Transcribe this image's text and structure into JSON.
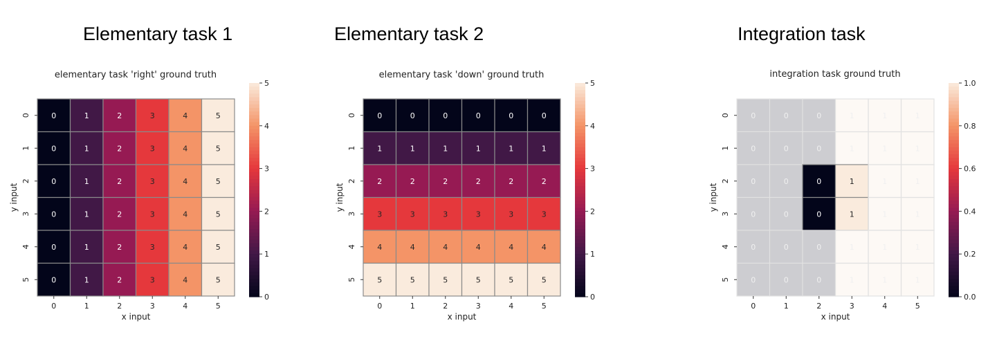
{
  "panel_titles": [
    "Elementary task 1",
    "Elementary task 2",
    "Integration task"
  ],
  "chart_data": [
    {
      "type": "heatmap",
      "title": "elementary task 'right' ground truth",
      "xlabel": "x input",
      "ylabel": "y input",
      "x_ticks": [
        "0",
        "1",
        "2",
        "3",
        "4",
        "5"
      ],
      "y_ticks": [
        "0",
        "1",
        "2",
        "3",
        "4",
        "5"
      ],
      "values": [
        [
          0,
          1,
          2,
          3,
          4,
          5
        ],
        [
          0,
          1,
          2,
          3,
          4,
          5
        ],
        [
          0,
          1,
          2,
          3,
          4,
          5
        ],
        [
          0,
          1,
          2,
          3,
          4,
          5
        ],
        [
          0,
          1,
          2,
          3,
          4,
          5
        ],
        [
          0,
          1,
          2,
          3,
          4,
          5
        ]
      ],
      "labels": [
        [
          "0",
          "1",
          "2",
          "3",
          "4",
          "5"
        ],
        [
          "0",
          "1",
          "2",
          "3",
          "4",
          "5"
        ],
        [
          "0",
          "1",
          "2",
          "3",
          "4",
          "5"
        ],
        [
          "0",
          "1",
          "2",
          "3",
          "4",
          "5"
        ],
        [
          "0",
          "1",
          "2",
          "3",
          "4",
          "5"
        ],
        [
          "0",
          "1",
          "2",
          "3",
          "4",
          "5"
        ]
      ],
      "colorbar": {
        "min": 0,
        "max": 5,
        "ticks": [
          "0",
          "1",
          "2",
          "3",
          "4",
          "5"
        ],
        "colormap": "rocket"
      },
      "grid": true
    },
    {
      "type": "heatmap",
      "title": "elementary task 'down' ground truth",
      "xlabel": "x input",
      "ylabel": "y input",
      "x_ticks": [
        "0",
        "1",
        "2",
        "3",
        "4",
        "5"
      ],
      "y_ticks": [
        "0",
        "1",
        "2",
        "3",
        "4",
        "5"
      ],
      "values": [
        [
          0,
          0,
          0,
          0,
          0,
          0
        ],
        [
          1,
          1,
          1,
          1,
          1,
          1
        ],
        [
          2,
          2,
          2,
          2,
          2,
          2
        ],
        [
          3,
          3,
          3,
          3,
          3,
          3
        ],
        [
          4,
          4,
          4,
          4,
          4,
          4
        ],
        [
          5,
          5,
          5,
          5,
          5,
          5
        ]
      ],
      "labels": [
        [
          "0",
          "0",
          "0",
          "0",
          "0",
          "0"
        ],
        [
          "1",
          "1",
          "1",
          "1",
          "1",
          "1"
        ],
        [
          "2",
          "2",
          "2",
          "2",
          "2",
          "2"
        ],
        [
          "3",
          "3",
          "3",
          "3",
          "3",
          "3"
        ],
        [
          "4",
          "4",
          "4",
          "4",
          "4",
          "4"
        ],
        [
          "5",
          "5",
          "5",
          "5",
          "5",
          "5"
        ]
      ],
      "colorbar": {
        "min": 0,
        "max": 5,
        "ticks": [
          "0",
          "1",
          "2",
          "3",
          "4",
          "5"
        ],
        "colormap": "rocket"
      },
      "grid": true
    },
    {
      "type": "heatmap",
      "title": "integration task ground truth",
      "xlabel": "x input",
      "ylabel": "y input",
      "x_ticks": [
        "0",
        "1",
        "2",
        "3",
        "4",
        "5"
      ],
      "y_ticks": [
        "0",
        "1",
        "2",
        "3",
        "4",
        "5"
      ],
      "values": [
        [
          0,
          0,
          0,
          1,
          1,
          1
        ],
        [
          0,
          0,
          0,
          1,
          1,
          1
        ],
        [
          0,
          0,
          0,
          1,
          1,
          1
        ],
        [
          0,
          0,
          0,
          1,
          1,
          1
        ],
        [
          0,
          0,
          0,
          1,
          1,
          1
        ],
        [
          0,
          0,
          0,
          1,
          1,
          1
        ]
      ],
      "labels": [
        [
          "0",
          "0",
          "0",
          "1",
          "1",
          "1"
        ],
        [
          "0",
          "0",
          "0",
          "1",
          "1",
          "1"
        ],
        [
          "0",
          "0",
          "0",
          "1",
          "1",
          "1"
        ],
        [
          "0",
          "0",
          "0",
          "1",
          "1",
          "1"
        ],
        [
          "0",
          "0",
          "0",
          "1",
          "1",
          "1"
        ],
        [
          "0",
          "0",
          "0",
          "1",
          "1",
          "1"
        ]
      ],
      "highlighted_cells": [
        [
          2,
          2
        ],
        [
          2,
          3
        ],
        [
          3,
          2
        ],
        [
          3,
          3
        ]
      ],
      "colorbar": {
        "min": 0.0,
        "max": 1.0,
        "ticks": [
          "0.0",
          "0.2",
          "0.4",
          "0.6",
          "0.8",
          "1.0"
        ],
        "colormap": "rocket"
      },
      "grid": true
    }
  ]
}
